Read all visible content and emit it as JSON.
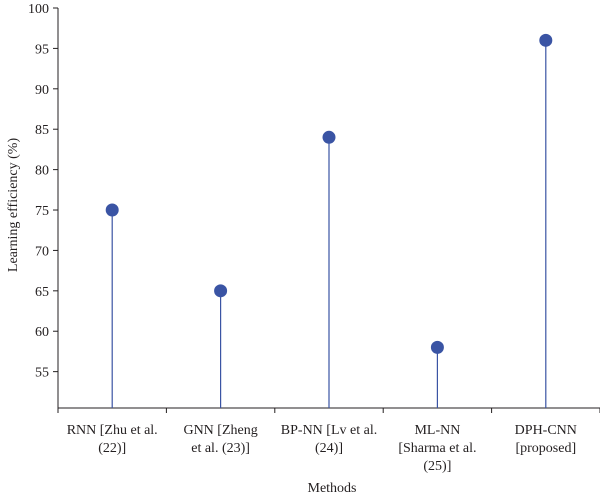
{
  "chart_data": {
    "type": "scatter",
    "title": "",
    "xlabel": "Methods",
    "ylabel": "Learning efficiency (%)",
    "categories": [
      [
        "RNN [Zhu et al.",
        "(22)]"
      ],
      [
        "GNN [Zheng",
        "et al. (23)]"
      ],
      [
        "BP-NN [Lv et al.",
        "(24)]"
      ],
      [
        "ML-NN",
        "[Sharma et al.",
        "(25)]"
      ],
      [
        "DPH-CNN",
        "[proposed]"
      ]
    ],
    "values": [
      75,
      65,
      84,
      58,
      96
    ],
    "ylim": [
      50.5,
      100
    ],
    "yticks": [
      55,
      60,
      65,
      70,
      75,
      80,
      85,
      90,
      95,
      100
    ],
    "grid": false,
    "legend": "none",
    "style": "lollipop",
    "colors": {
      "marker": "#3a54a4",
      "stem": "#3a54a4",
      "axis": "#231f20",
      "text": "#231f20"
    }
  }
}
